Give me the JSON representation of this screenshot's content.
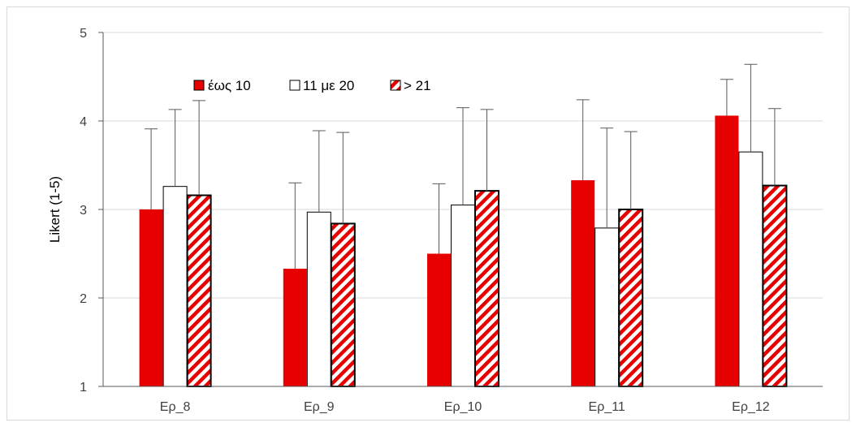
{
  "chart_data": {
    "type": "bar",
    "title": "",
    "xlabel": "",
    "ylabel": "Likert (1-5)",
    "ylim": [
      1,
      5
    ],
    "yticks": [
      1,
      2,
      3,
      4,
      5
    ],
    "grid": "horizontal",
    "legend_position": "top-left",
    "categories": [
      "Ερ_8",
      "Ερ_9",
      "Ερ_10",
      "Ερ_11",
      "Ερ_12"
    ],
    "series": [
      {
        "name": "έως 10",
        "style": "solid",
        "color": "#e60000",
        "values": [
          3.0,
          2.33,
          2.5,
          3.33,
          4.06
        ],
        "error": [
          0.91,
          0.97,
          0.79,
          0.91,
          0.41
        ]
      },
      {
        "name": "11 με 20",
        "style": "outline",
        "color": "#ffffff",
        "values": [
          3.26,
          2.97,
          3.05,
          2.79,
          3.65
        ],
        "error": [
          0.87,
          0.92,
          1.1,
          1.13,
          0.99
        ]
      },
      {
        "name": "> 21",
        "style": "hatched",
        "color": "#e60000",
        "values": [
          3.16,
          2.84,
          3.21,
          3.0,
          3.27
        ],
        "error": [
          1.07,
          1.03,
          0.92,
          0.88,
          0.87
        ]
      }
    ]
  }
}
